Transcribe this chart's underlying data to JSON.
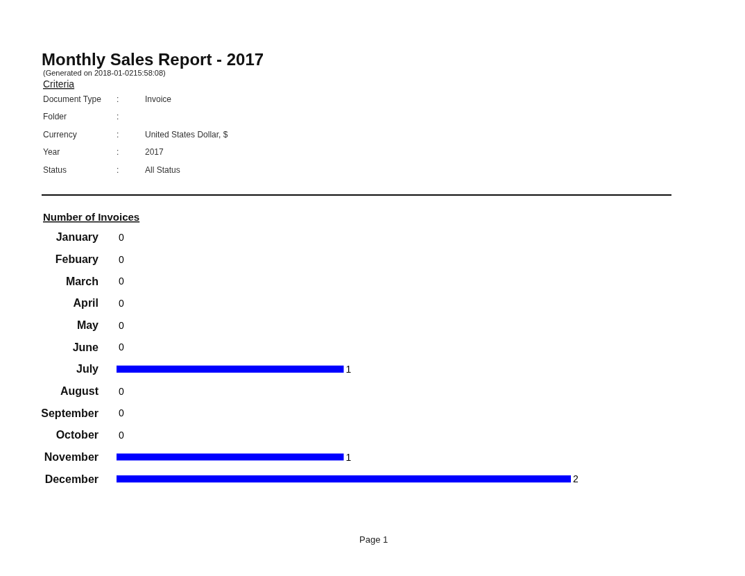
{
  "chart_data": {
    "type": "bar",
    "orientation": "horizontal",
    "title": "Monthly Sales Report - 2017",
    "subtitle": "(Generated on 2018-01-0215:58:08)",
    "categories": [
      "January",
      "Febuary",
      "March",
      "April",
      "May",
      "June",
      "July",
      "August",
      "September",
      "October",
      "November",
      "December"
    ],
    "values": [
      0,
      0,
      0,
      0,
      0,
      0,
      1,
      0,
      0,
      0,
      1,
      2
    ],
    "color": "#0000ff",
    "data_labels": true,
    "annotations": [
      "Criteria",
      "Document Type : Invoice",
      "Folder :",
      "Currency : United States Dollar, $",
      "Year : 2017",
      "Status : All Status",
      "Number of Invoices",
      "Page 1"
    ]
  }
}
